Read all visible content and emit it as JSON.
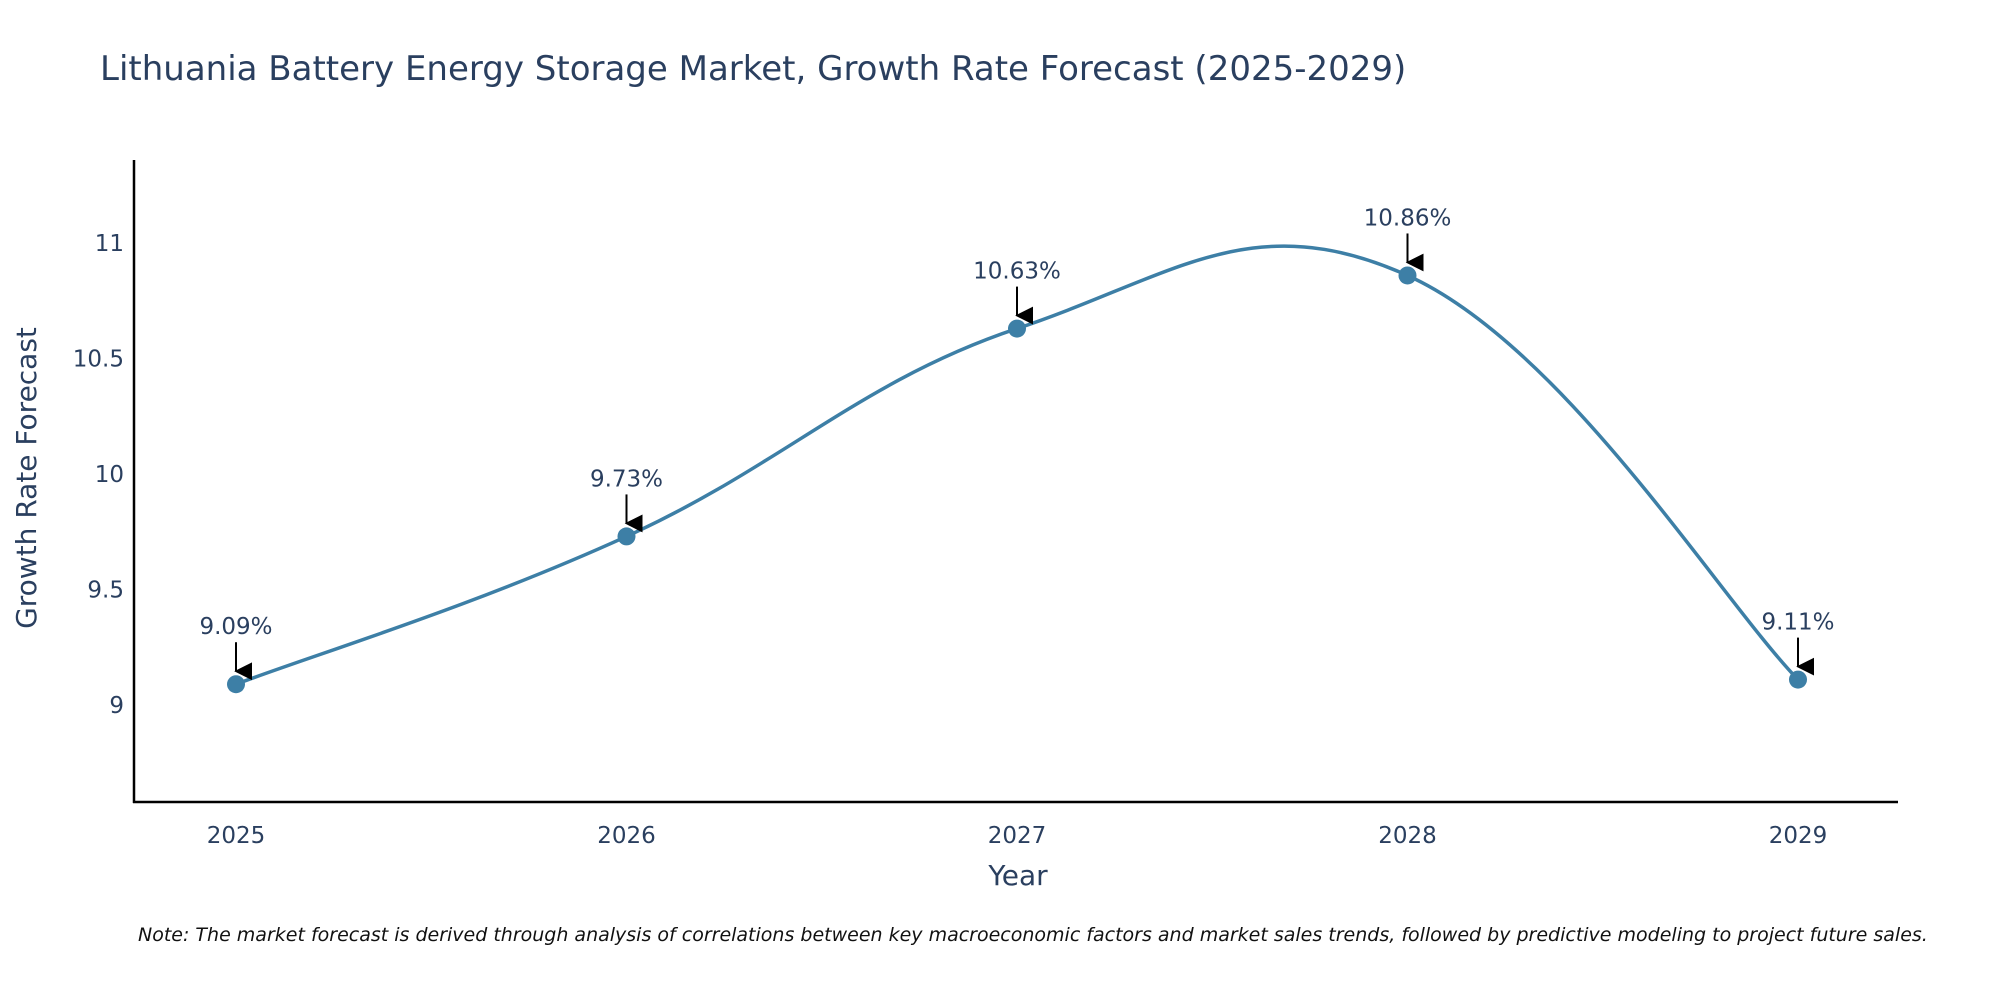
{
  "chart_data": {
    "type": "line",
    "title": "Lithuania Battery Energy Storage Market, Growth Rate Forecast (2025-2029)",
    "xlabel": "Year",
    "ylabel": "Growth Rate Forecast",
    "categories": [
      "2025",
      "2026",
      "2027",
      "2028",
      "2029"
    ],
    "series": [
      {
        "name": "Growth Rate Forecast",
        "values": [
          9.09,
          9.73,
          10.63,
          10.86,
          9.11
        ],
        "labels": [
          "9.09%",
          "9.73%",
          "10.63%",
          "10.86%",
          "9.11%"
        ]
      }
    ],
    "yticks": [
      9,
      9.5,
      10,
      10.5,
      11
    ],
    "ytick_labels": [
      "9",
      "9.5",
      "10",
      "10.5",
      "11"
    ],
    "ylim": [
      8.58,
      11.36
    ],
    "grid": false,
    "line_color": "#3d7fa6",
    "marker_color": "#3d7fa6",
    "arrow_color": "#000000",
    "text_color": "#2a3f5f",
    "note": "Note: The market forecast is derived through analysis of correlations between key macroeconomic factors and market sales trends, followed by predictive modeling to project future sales."
  }
}
